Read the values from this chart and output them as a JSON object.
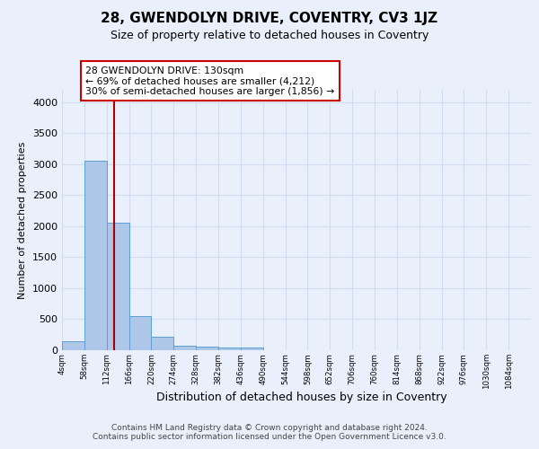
{
  "title": "28, GWENDOLYN DRIVE, COVENTRY, CV3 1JZ",
  "subtitle": "Size of property relative to detached houses in Coventry",
  "xlabel": "Distribution of detached houses by size in Coventry",
  "ylabel": "Number of detached properties",
  "bin_labels": [
    "4sqm",
    "58sqm",
    "112sqm",
    "166sqm",
    "220sqm",
    "274sqm",
    "328sqm",
    "382sqm",
    "436sqm",
    "490sqm",
    "544sqm",
    "598sqm",
    "652sqm",
    "706sqm",
    "760sqm",
    "814sqm",
    "868sqm",
    "922sqm",
    "976sqm",
    "1030sqm",
    "1084sqm"
  ],
  "bin_edges": [
    4,
    58,
    112,
    166,
    220,
    274,
    328,
    382,
    436,
    490,
    544,
    598,
    652,
    706,
    760,
    814,
    868,
    922,
    976,
    1030,
    1084
  ],
  "bar_heights": [
    150,
    3050,
    2050,
    550,
    220,
    75,
    55,
    45,
    45,
    0,
    0,
    0,
    0,
    0,
    0,
    0,
    0,
    0,
    0,
    0
  ],
  "bar_color": "#aec6e8",
  "bar_edge_color": "#5a9fd4",
  "red_line_x": 130,
  "annotation_line1": "28 GWENDOLYN DRIVE: 130sqm",
  "annotation_line2": "← 69% of detached houses are smaller (4,212)",
  "annotation_line3": "30% of semi-detached houses are larger (1,856) →",
  "annotation_box_color": "#ffffff",
  "annotation_box_edge": "#cc0000",
  "ylim": [
    0,
    4200
  ],
  "yticks": [
    0,
    500,
    1000,
    1500,
    2000,
    2500,
    3000,
    3500,
    4000
  ],
  "bg_color": "#eaf0fb",
  "grid_color": "#d0ddf0",
  "footer1": "Contains HM Land Registry data © Crown copyright and database right 2024.",
  "footer2": "Contains public sector information licensed under the Open Government Licence v3.0."
}
